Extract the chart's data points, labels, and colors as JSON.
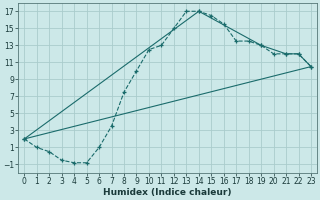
{
  "xlabel": "Humidex (Indice chaleur)",
  "background_color": "#cce8e8",
  "grid_color": "#aacccc",
  "line_color": "#1a6b6b",
  "xlim": [
    -0.5,
    23.5
  ],
  "ylim": [
    -2,
    18
  ],
  "xticks": [
    0,
    1,
    2,
    3,
    4,
    5,
    6,
    7,
    8,
    9,
    10,
    11,
    12,
    13,
    14,
    15,
    16,
    17,
    18,
    19,
    20,
    21,
    22,
    23
  ],
  "yticks": [
    -1,
    1,
    3,
    5,
    7,
    9,
    11,
    13,
    15,
    17
  ],
  "main_x": [
    0,
    1,
    2,
    3,
    4,
    5,
    6,
    7,
    8,
    9,
    10,
    11,
    12,
    13,
    14,
    15,
    16,
    17,
    18,
    19,
    20,
    21,
    22,
    23
  ],
  "main_y": [
    2,
    1,
    0.5,
    -0.5,
    -0.8,
    -0.8,
    1,
    3.5,
    7.5,
    10,
    12.5,
    13,
    15,
    17,
    17,
    16.5,
    15.5,
    13.5,
    13.5,
    13,
    12,
    12,
    12,
    10.5
  ],
  "line1_x": [
    0,
    23
  ],
  "line1_y": [
    2,
    10.5
  ],
  "line2_x": [
    0,
    14,
    19,
    21,
    22,
    23
  ],
  "line2_y": [
    2,
    17,
    13,
    12,
    12,
    10.5
  ]
}
